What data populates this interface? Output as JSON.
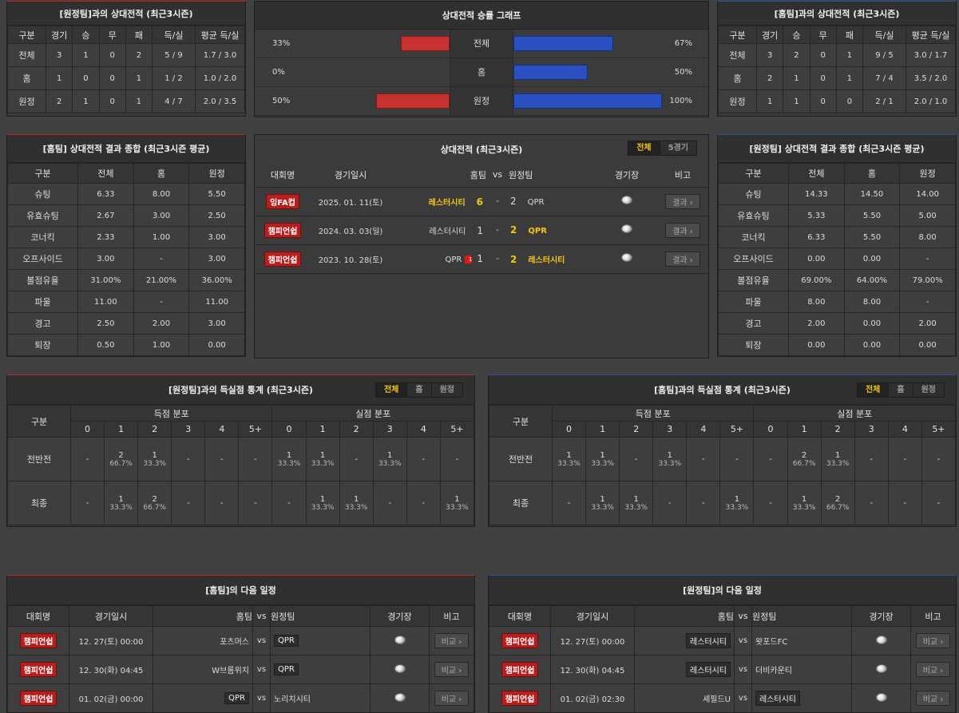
{
  "away_h2h": {
    "title": "[원정팀]과의 상대전적 (최근3시즌)",
    "headers": [
      "구분",
      "경기",
      "승",
      "무",
      "패",
      "득/실",
      "평균 득/실"
    ],
    "rows": [
      [
        "전체",
        "3",
        "1",
        "0",
        "2",
        "5 / 9",
        "1.7 / 3.0"
      ],
      [
        "홈",
        "1",
        "0",
        "0",
        "1",
        "1 / 2",
        "1.0 / 2.0"
      ],
      [
        "원정",
        "2",
        "1",
        "0",
        "1",
        "4 / 7",
        "2.0 / 3.5"
      ]
    ]
  },
  "home_h2h": {
    "title": "[홈팀]과의 상대전적 (최근3시즌)",
    "headers": [
      "구분",
      "경기",
      "승",
      "무",
      "패",
      "득/실",
      "평균 득/실"
    ],
    "rows": [
      [
        "전체",
        "3",
        "2",
        "0",
        "1",
        "9 / 5",
        "3.0 / 1.7"
      ],
      [
        "홈",
        "2",
        "1",
        "0",
        "1",
        "7 / 4",
        "3.5 / 2.0"
      ],
      [
        "원정",
        "1",
        "1",
        "0",
        "0",
        "2 / 1",
        "2.0 / 1.0"
      ]
    ]
  },
  "graph": {
    "title": "상대전적 승률 그래프",
    "colors": {
      "left": "#c93030",
      "right": "#2a4fc0"
    },
    "rows": [
      {
        "label": "전체",
        "left_pct": "33%",
        "left_val": 0.33,
        "right_pct": "67%",
        "right_val": 0.67
      },
      {
        "label": "홈",
        "left_pct": "0%",
        "left_val": 0,
        "right_pct": "50%",
        "right_val": 0.5
      },
      {
        "label": "원정",
        "left_pct": "50%",
        "left_val": 0.5,
        "right_pct": "100%",
        "right_val": 1.0
      }
    ]
  },
  "home_summary": {
    "title": "[홈팀] 상대전적 결과 종합 (최근3시즌 평균)",
    "headers": [
      "구분",
      "전체",
      "홈",
      "원정"
    ],
    "rows": [
      [
        "슈팅",
        "6.33",
        "8.00",
        "5.50"
      ],
      [
        "유효슈팅",
        "2.67",
        "3.00",
        "2.50"
      ],
      [
        "코너킥",
        "2.33",
        "1.00",
        "3.00"
      ],
      [
        "오프사이드",
        "3.00",
        "-",
        "3.00"
      ],
      [
        "볼점유율",
        "31.00%",
        "21.00%",
        "36.00%"
      ],
      [
        "파울",
        "11.00",
        "-",
        "11.00"
      ],
      [
        "경고",
        "2.50",
        "2.00",
        "3.00"
      ],
      [
        "퇴장",
        "0.50",
        "1.00",
        "0.00"
      ]
    ]
  },
  "away_summary": {
    "title": "[원정팀] 상대전적 결과 종합 (최근3시즌 평균)",
    "headers": [
      "구분",
      "전체",
      "홈",
      "원정"
    ],
    "rows": [
      [
        "슈팅",
        "14.33",
        "14.50",
        "14.00"
      ],
      [
        "유효슈팅",
        "5.33",
        "5.50",
        "5.00"
      ],
      [
        "코너킥",
        "6.33",
        "5.50",
        "8.00"
      ],
      [
        "오프사이드",
        "0.00",
        "0.00",
        "-"
      ],
      [
        "볼점유율",
        "69.00%",
        "64.00%",
        "79.00%"
      ],
      [
        "파울",
        "8.00",
        "8.00",
        "-"
      ],
      [
        "경고",
        "2.00",
        "0.00",
        "2.00"
      ],
      [
        "퇴장",
        "0.00",
        "0.00",
        "0.00"
      ]
    ]
  },
  "matches": {
    "title": "상대전적 (최근3시즌)",
    "toggle": [
      "전체",
      "5경기"
    ],
    "headers": [
      "대회명",
      "경기일시",
      "홈팀",
      "vs",
      "원정팀",
      "경기장",
      "비고"
    ],
    "rows": [
      {
        "comp": "잉FA컵",
        "date": "2025. 01. 11(토)",
        "home": "레스터시티",
        "home_gold": true,
        "hs": "6",
        "dash": "-",
        "as": "2",
        "away": "QPR",
        "away_gold": false,
        "redcard": "",
        "btn": "결과"
      },
      {
        "comp": "챔피언쉽",
        "date": "2024. 03. 03(일)",
        "home": "레스터시티",
        "home_gold": false,
        "hs": "1",
        "dash": "-",
        "as": "2",
        "away": "QPR",
        "away_gold": true,
        "redcard": "",
        "btn": "결과"
      },
      {
        "comp": "챔피언쉽",
        "date": "2023. 10. 28(토)",
        "home": "QPR",
        "home_gold": false,
        "hs": "1",
        "dash": "-",
        "as": "2",
        "away": "레스터시티",
        "away_gold": true,
        "redcard": "1",
        "btn": "결과"
      }
    ]
  },
  "dist_left": {
    "title": "[원정팀]과의 득실점 통계 (최근3시즌)",
    "toggle": [
      "전체",
      "홈",
      "원정"
    ],
    "gubun": "구분",
    "scored": "득점 분포",
    "conceded": "실점 분포",
    "cols": [
      "0",
      "1",
      "2",
      "3",
      "4",
      "5+"
    ],
    "rows": [
      {
        "label": "전반전",
        "scored": [
          [
            "-",
            ""
          ],
          [
            "2",
            "66.7%"
          ],
          [
            "1",
            "33.3%"
          ],
          [
            "-",
            ""
          ],
          [
            "-",
            ""
          ],
          [
            "-",
            ""
          ]
        ],
        "conceded": [
          [
            "1",
            "33.3%"
          ],
          [
            "1",
            "33.3%"
          ],
          [
            "-",
            ""
          ],
          [
            "1",
            "33.3%"
          ],
          [
            "-",
            ""
          ],
          [
            "-",
            ""
          ]
        ]
      },
      {
        "label": "최종",
        "scored": [
          [
            "-",
            ""
          ],
          [
            "1",
            "33.3%"
          ],
          [
            "2",
            "66.7%"
          ],
          [
            "-",
            ""
          ],
          [
            "-",
            ""
          ],
          [
            "-",
            ""
          ]
        ],
        "conceded": [
          [
            "-",
            ""
          ],
          [
            "1",
            "33.3%"
          ],
          [
            "1",
            "33.3%"
          ],
          [
            "-",
            ""
          ],
          [
            "-",
            ""
          ],
          [
            "1",
            "33.3%"
          ]
        ]
      }
    ]
  },
  "dist_right": {
    "title": "[홈팀]과의 득실점 통계 (최근3시즌)",
    "toggle": [
      "전체",
      "홈",
      "원정"
    ],
    "gubun": "구분",
    "scored": "득점 분포",
    "conceded": "실점 분포",
    "cols": [
      "0",
      "1",
      "2",
      "3",
      "4",
      "5+"
    ],
    "rows": [
      {
        "label": "전반전",
        "scored": [
          [
            "1",
            "33.3%"
          ],
          [
            "1",
            "33.3%"
          ],
          [
            "-",
            ""
          ],
          [
            "1",
            "33.3%"
          ],
          [
            "-",
            ""
          ],
          [
            "-",
            ""
          ]
        ],
        "conceded": [
          [
            "-",
            ""
          ],
          [
            "2",
            "66.7%"
          ],
          [
            "1",
            "33.3%"
          ],
          [
            "-",
            ""
          ],
          [
            "-",
            ""
          ],
          [
            "-",
            ""
          ]
        ]
      },
      {
        "label": "최종",
        "scored": [
          [
            "-",
            ""
          ],
          [
            "1",
            "33.3%"
          ],
          [
            "1",
            "33.3%"
          ],
          [
            "-",
            ""
          ],
          [
            "-",
            ""
          ],
          [
            "1",
            "33.3%"
          ]
        ],
        "conceded": [
          [
            "-",
            ""
          ],
          [
            "1",
            "33.3%"
          ],
          [
            "2",
            "66.7%"
          ],
          [
            "-",
            ""
          ],
          [
            "-",
            ""
          ],
          [
            "-",
            ""
          ]
        ]
      }
    ]
  },
  "next_home": {
    "title": "[홈팀]의 다음 일정",
    "headers": [
      "대회명",
      "경기일시",
      "홈팀",
      "vs",
      "원정팀",
      "경기장",
      "비고"
    ],
    "rows": [
      {
        "comp": "챔피언쉽",
        "date": "12. 27(토) 00:00",
        "home": "포츠머스",
        "home_box": false,
        "vs": "vs",
        "away": "QPR",
        "away_box": true,
        "btn": "비교"
      },
      {
        "comp": "챔피언쉽",
        "date": "12. 30(화) 04:45",
        "home": "W브롬위치",
        "home_box": false,
        "vs": "vs",
        "away": "QPR",
        "away_box": true,
        "btn": "비교"
      },
      {
        "comp": "챔피언쉽",
        "date": "01. 02(금) 00:00",
        "home": "QPR",
        "home_box": true,
        "vs": "vs",
        "away": "노리치시티",
        "away_box": false,
        "btn": "비교"
      }
    ]
  },
  "next_away": {
    "title": "[원정팀]의 다음 일정",
    "headers": [
      "대회명",
      "경기일시",
      "홈팀",
      "vs",
      "원정팀",
      "경기장",
      "비고"
    ],
    "rows": [
      {
        "comp": "챔피언쉽",
        "date": "12. 27(토) 00:00",
        "home": "레스터시티",
        "home_box": true,
        "vs": "vs",
        "away": "왓포드FC",
        "away_box": false,
        "btn": "비교"
      },
      {
        "comp": "챔피언쉽",
        "date": "12. 30(화) 04:45",
        "home": "레스터시티",
        "home_box": true,
        "vs": "vs",
        "away": "더비카운티",
        "away_box": false,
        "btn": "비교"
      },
      {
        "comp": "챔피언쉽",
        "date": "01. 02(금) 02:30",
        "home": "셰필드U",
        "home_box": false,
        "vs": "vs",
        "away": "레스터시티",
        "away_box": true,
        "btn": "비교"
      }
    ]
  }
}
